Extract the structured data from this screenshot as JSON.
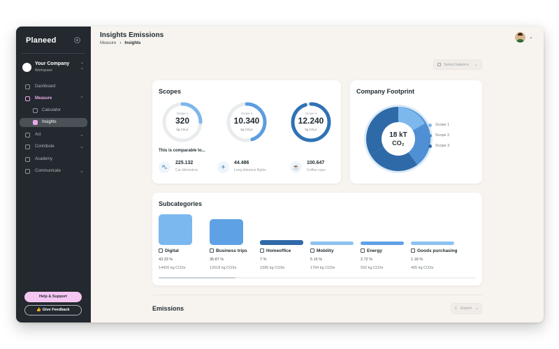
{
  "app": {
    "logo": "Planeed"
  },
  "workspace": {
    "name": "Your Company",
    "sub": "Workspace"
  },
  "sidebar": {
    "items": [
      {
        "label": "Dashboard"
      },
      {
        "label": "Measure"
      },
      {
        "label": "Calculator"
      },
      {
        "label": "Insights"
      },
      {
        "label": "Act"
      },
      {
        "label": "Contribute"
      },
      {
        "label": "Academy"
      },
      {
        "label": "Communicate"
      }
    ],
    "help_label": "Help & Support",
    "feedback_label": "Give Feedback"
  },
  "header": {
    "title": "Insights Emissions",
    "breadcrumb": [
      "Measure",
      "Insights"
    ]
  },
  "filters": {
    "select_balance_placeholder": "Select balance"
  },
  "scopes": {
    "title": "Scopes",
    "items": [
      {
        "label": "Scope 1",
        "value": "320",
        "unit": "kg CO₂e",
        "fill": 0.25,
        "color": "#7db8ec"
      },
      {
        "label": "Scope 2",
        "value": "10.340",
        "unit": "kg CO₂e",
        "fill": 0.45,
        "color": "#5b9de0"
      },
      {
        "label": "Scope 3",
        "value": "12.240",
        "unit": "kg CO₂e",
        "fill": 0.95,
        "color": "#2f72b5"
      }
    ],
    "compare_label": "This is comparable to...",
    "comparisons": [
      {
        "icon": "car-icon",
        "value": "225.132",
        "label": "Car kilometres"
      },
      {
        "icon": "airplane-icon",
        "value": "44.486",
        "label": "Long-distance flights"
      },
      {
        "icon": "coffee-icon",
        "value": "100.647",
        "label": "Coffee cups"
      }
    ]
  },
  "footprint": {
    "title": "Company Footprint",
    "total_value": "18 kT",
    "total_unit": "CO₂",
    "legend": [
      {
        "label": "Scope 1",
        "color": "#7db8ec"
      },
      {
        "label": "Scope 2",
        "color": "#4f8fd4"
      },
      {
        "label": "Scope 3",
        "color": "#2f6aa8"
      }
    ]
  },
  "subcategories": {
    "title": "Subcategories",
    "items": [
      {
        "name": "Digital",
        "icon": "monitor-icon",
        "percent": "43.33 %",
        "co2": "14426 kg CO2e",
        "share": 43.33,
        "color": "#7cb8f0"
      },
      {
        "name": "Business trips",
        "icon": "car-icon",
        "percent": "36.87 %",
        "co2": "12618 kg CO2e",
        "share": 36.87,
        "color": "#5fa1e5"
      },
      {
        "name": "Homeoffice",
        "icon": "home-icon",
        "percent": "7 %",
        "co2": "2395 kg CO2e",
        "share": 7,
        "color": "#2f6aa8"
      },
      {
        "name": "Mobility",
        "icon": "bus-icon",
        "percent": "5.16 %",
        "co2": "1764 kg CO2e",
        "share": 5.16,
        "color": "#8ec2f0"
      },
      {
        "name": "Energy",
        "icon": "energy-icon",
        "percent": "2.72 %",
        "co2": "932 kg CO2e",
        "share": 2.72,
        "color": "#5fa1e5"
      },
      {
        "name": "Goods purchasing",
        "icon": "box-icon",
        "percent": "1.18 %",
        "co2": "405 kg CO2e",
        "share": 1.18,
        "color": "#8ec2f0"
      }
    ]
  },
  "emissions": {
    "title": "Emissions",
    "export_label": "Export"
  }
}
